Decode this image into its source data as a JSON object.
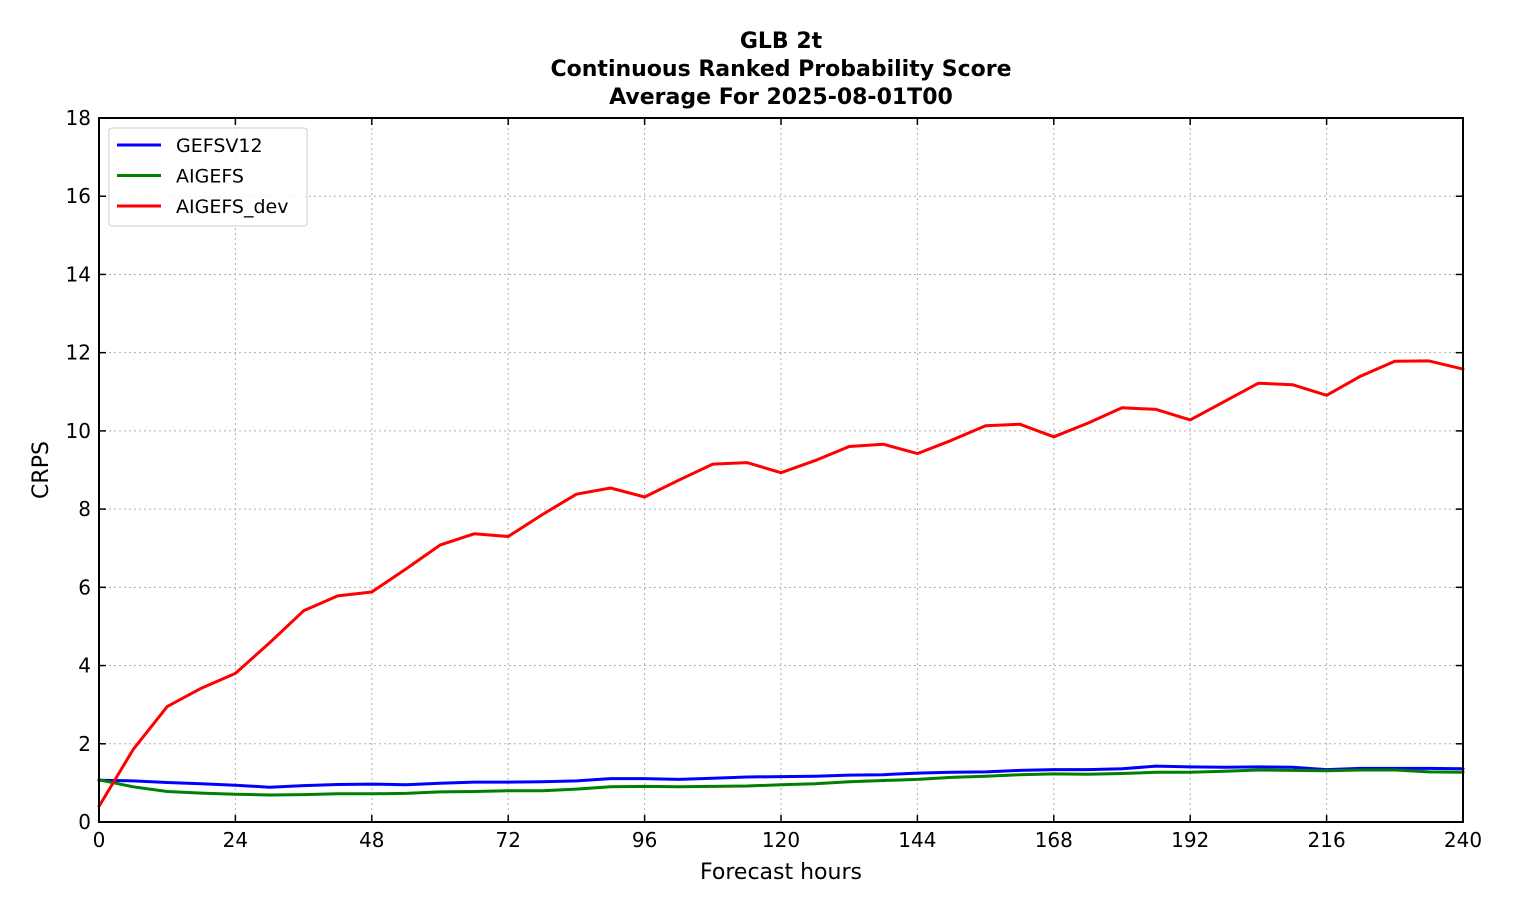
{
  "chart_data": {
    "type": "line",
    "title": [
      "GLB 2t",
      "Continuous Ranked Probability Score",
      "Average For 2025-08-01T00"
    ],
    "xlabel": "Forecast hours",
    "ylabel": "CRPS",
    "xlim": [
      0,
      240
    ],
    "ylim": [
      0,
      18
    ],
    "xticks": [
      0,
      24,
      48,
      72,
      96,
      120,
      144,
      168,
      192,
      216,
      240
    ],
    "yticks": [
      0,
      2,
      4,
      6,
      8,
      10,
      12,
      14,
      16,
      18
    ],
    "grid": true,
    "legend_position": "top-left",
    "x": [
      0,
      6,
      12,
      18,
      24,
      30,
      36,
      42,
      48,
      54,
      60,
      66,
      72,
      78,
      84,
      90,
      96,
      102,
      108,
      114,
      120,
      126,
      132,
      138,
      144,
      150,
      156,
      162,
      168,
      174,
      180,
      186,
      192,
      198,
      204,
      210,
      216,
      222,
      228,
      234,
      240
    ],
    "series": [
      {
        "name": "GEFSV12",
        "color": "#0000ff",
        "values": [
          1.07,
          1.05,
          1.01,
          0.98,
          0.94,
          0.89,
          0.93,
          0.96,
          0.97,
          0.95,
          0.99,
          1.02,
          1.02,
          1.03,
          1.05,
          1.11,
          1.11,
          1.09,
          1.12,
          1.15,
          1.16,
          1.17,
          1.2,
          1.21,
          1.25,
          1.27,
          1.28,
          1.32,
          1.34,
          1.34,
          1.36,
          1.43,
          1.41,
          1.4,
          1.41,
          1.4,
          1.34,
          1.37,
          1.37,
          1.37,
          1.36
        ]
      },
      {
        "name": "AIGEFS",
        "color": "#008000",
        "values": [
          1.08,
          0.9,
          0.78,
          0.74,
          0.71,
          0.69,
          0.7,
          0.72,
          0.72,
          0.73,
          0.77,
          0.78,
          0.8,
          0.8,
          0.84,
          0.9,
          0.91,
          0.9,
          0.91,
          0.92,
          0.95,
          0.98,
          1.03,
          1.06,
          1.09,
          1.14,
          1.17,
          1.21,
          1.23,
          1.22,
          1.24,
          1.27,
          1.27,
          1.3,
          1.33,
          1.32,
          1.31,
          1.33,
          1.33,
          1.28,
          1.27
        ]
      },
      {
        "name": "AIGEFS_dev",
        "color": "#ff0000",
        "values": [
          0.4,
          1.85,
          2.95,
          3.42,
          3.8,
          4.58,
          5.4,
          5.78,
          5.88,
          6.47,
          7.08,
          7.37,
          7.3,
          7.86,
          8.38,
          8.54,
          8.31,
          8.74,
          9.15,
          9.19,
          8.93,
          9.24,
          9.6,
          9.66,
          9.42,
          9.76,
          10.13,
          10.17,
          9.85,
          10.2,
          10.59,
          10.55,
          10.28,
          10.75,
          11.22,
          11.18,
          10.91,
          11.4,
          11.78,
          11.79,
          11.58
        ]
      }
    ]
  }
}
